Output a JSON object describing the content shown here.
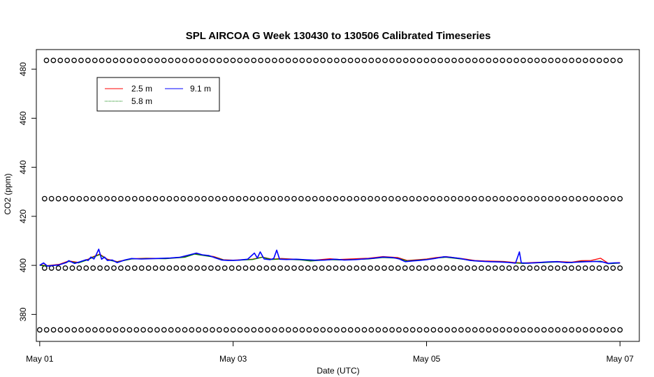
{
  "chart_data": {
    "type": "line",
    "title": "SPL AIRCOA G  Week 130430 to 130506  Calibrated Timeseries",
    "xlabel": "Date (UTC)",
    "ylabel": "CO2 (ppm)",
    "xlim": [
      -0.035,
      6.2
    ],
    "ylim": [
      369,
      488
    ],
    "x_ticks": [
      {
        "value": 0,
        "label": "May 01"
      },
      {
        "value": 2,
        "label": "May 03"
      },
      {
        "value": 4,
        "label": "May 05"
      },
      {
        "value": 6,
        "label": "May 07"
      }
    ],
    "y_ticks": [
      380,
      400,
      420,
      440,
      460,
      480
    ],
    "grid": false,
    "legend_position": "top-left",
    "series": [
      {
        "name": "2.5 m",
        "color": "#ff0000",
        "points": [
          [
            0.0,
            400.2
          ],
          [
            0.08,
            399.9
          ],
          [
            0.2,
            400.4
          ],
          [
            0.3,
            401.8
          ],
          [
            0.4,
            401.2
          ],
          [
            0.5,
            402.5
          ],
          [
            0.55,
            403.5
          ],
          [
            0.62,
            404.6
          ],
          [
            0.7,
            402.5
          ],
          [
            0.8,
            401.5
          ],
          [
            0.95,
            402.7
          ],
          [
            1.1,
            402.9
          ],
          [
            1.3,
            402.8
          ],
          [
            1.5,
            403.5
          ],
          [
            1.6,
            404.8
          ],
          [
            1.7,
            404.2
          ],
          [
            1.8,
            403.6
          ],
          [
            1.9,
            402.3
          ],
          [
            2.0,
            402.1
          ],
          [
            2.2,
            402.5
          ],
          [
            2.3,
            403.4
          ],
          [
            2.4,
            402.5
          ],
          [
            2.5,
            402.8
          ],
          [
            2.6,
            402.6
          ],
          [
            2.7,
            402.4
          ],
          [
            2.8,
            402.0
          ],
          [
            3.0,
            402.7
          ],
          [
            3.1,
            402.4
          ],
          [
            3.2,
            402.6
          ],
          [
            3.4,
            402.9
          ],
          [
            3.55,
            403.6
          ],
          [
            3.7,
            403.2
          ],
          [
            3.8,
            402.0
          ],
          [
            4.0,
            402.6
          ],
          [
            4.1,
            403.2
          ],
          [
            4.2,
            403.6
          ],
          [
            4.4,
            402.6
          ],
          [
            4.5,
            402.0
          ],
          [
            4.6,
            401.8
          ],
          [
            4.8,
            401.6
          ],
          [
            4.9,
            401.2
          ],
          [
            5.0,
            401.0
          ],
          [
            5.2,
            401.3
          ],
          [
            5.35,
            401.6
          ],
          [
            5.5,
            401.3
          ],
          [
            5.6,
            401.9
          ],
          [
            5.7,
            402.0
          ],
          [
            5.8,
            402.9
          ],
          [
            5.88,
            400.8
          ],
          [
            6.0,
            401.1
          ]
        ]
      },
      {
        "name": "5.8 m",
        "color": "#008000",
        "points": [
          [
            0.0,
            400.0
          ],
          [
            0.08,
            399.8
          ],
          [
            0.2,
            400.2
          ],
          [
            0.3,
            401.6
          ],
          [
            0.4,
            401.0
          ],
          [
            0.5,
            402.3
          ],
          [
            0.55,
            403.3
          ],
          [
            0.62,
            404.4
          ],
          [
            0.7,
            402.3
          ],
          [
            0.8,
            401.4
          ],
          [
            0.95,
            402.6
          ],
          [
            1.1,
            402.8
          ],
          [
            1.3,
            402.7
          ],
          [
            1.5,
            403.3
          ],
          [
            1.6,
            404.6
          ],
          [
            1.7,
            404.0
          ],
          [
            1.8,
            403.4
          ],
          [
            1.9,
            402.2
          ],
          [
            2.0,
            402.0
          ],
          [
            2.2,
            402.4
          ],
          [
            2.3,
            403.3
          ],
          [
            2.4,
            402.4
          ],
          [
            2.5,
            402.6
          ],
          [
            2.6,
            402.4
          ],
          [
            2.7,
            402.2
          ],
          [
            2.8,
            401.8
          ],
          [
            3.0,
            402.3
          ],
          [
            3.1,
            402.2
          ],
          [
            3.2,
            402.3
          ],
          [
            3.4,
            402.6
          ],
          [
            3.55,
            403.2
          ],
          [
            3.7,
            402.9
          ],
          [
            3.8,
            401.8
          ],
          [
            4.0,
            402.4
          ],
          [
            4.1,
            403.0
          ],
          [
            4.2,
            403.3
          ],
          [
            4.4,
            402.4
          ],
          [
            4.5,
            401.8
          ],
          [
            4.6,
            401.6
          ],
          [
            4.8,
            401.4
          ],
          [
            4.9,
            401.0
          ],
          [
            5.0,
            400.8
          ],
          [
            5.2,
            401.1
          ],
          [
            5.35,
            401.4
          ],
          [
            5.5,
            401.1
          ],
          [
            5.6,
            401.6
          ],
          [
            5.7,
            401.6
          ],
          [
            5.8,
            401.7
          ],
          [
            5.88,
            400.7
          ],
          [
            6.0,
            400.9
          ]
        ]
      },
      {
        "name": "9.1 m",
        "color": "#0000ff",
        "points": [
          [
            0.0,
            400.0
          ],
          [
            0.04,
            401.0
          ],
          [
            0.08,
            399.7
          ],
          [
            0.12,
            399.9
          ],
          [
            0.2,
            400.2
          ],
          [
            0.28,
            401.2
          ],
          [
            0.3,
            401.9
          ],
          [
            0.36,
            400.8
          ],
          [
            0.42,
            401.5
          ],
          [
            0.48,
            402.3
          ],
          [
            0.5,
            402.0
          ],
          [
            0.53,
            403.4
          ],
          [
            0.56,
            402.6
          ],
          [
            0.58,
            404.0
          ],
          [
            0.61,
            406.6
          ],
          [
            0.64,
            402.5
          ],
          [
            0.67,
            403.4
          ],
          [
            0.7,
            402.0
          ],
          [
            0.75,
            402.2
          ],
          [
            0.8,
            401.1
          ],
          [
            0.88,
            402.2
          ],
          [
            0.95,
            402.8
          ],
          [
            1.05,
            402.6
          ],
          [
            1.2,
            402.8
          ],
          [
            1.35,
            403.0
          ],
          [
            1.45,
            403.3
          ],
          [
            1.55,
            404.3
          ],
          [
            1.62,
            405.0
          ],
          [
            1.68,
            404.3
          ],
          [
            1.75,
            404.0
          ],
          [
            1.82,
            403.0
          ],
          [
            1.88,
            402.2
          ],
          [
            1.95,
            402.0
          ],
          [
            2.05,
            402.1
          ],
          [
            2.15,
            402.5
          ],
          [
            2.22,
            405.0
          ],
          [
            2.25,
            403.0
          ],
          [
            2.28,
            405.5
          ],
          [
            2.32,
            402.6
          ],
          [
            2.38,
            402.3
          ],
          [
            2.42,
            402.8
          ],
          [
            2.45,
            406.2
          ],
          [
            2.48,
            402.5
          ],
          [
            2.55,
            402.4
          ],
          [
            2.65,
            402.5
          ],
          [
            2.75,
            402.3
          ],
          [
            2.85,
            402.1
          ],
          [
            2.95,
            402.2
          ],
          [
            3.05,
            402.5
          ],
          [
            3.15,
            402.2
          ],
          [
            3.25,
            402.3
          ],
          [
            3.35,
            402.6
          ],
          [
            3.45,
            402.9
          ],
          [
            3.55,
            403.4
          ],
          [
            3.65,
            403.2
          ],
          [
            3.72,
            402.6
          ],
          [
            3.78,
            401.5
          ],
          [
            3.85,
            401.8
          ],
          [
            3.92,
            402.0
          ],
          [
            4.0,
            402.3
          ],
          [
            4.1,
            402.9
          ],
          [
            4.18,
            403.5
          ],
          [
            4.25,
            403.3
          ],
          [
            4.35,
            402.8
          ],
          [
            4.45,
            402.0
          ],
          [
            4.55,
            401.7
          ],
          [
            4.65,
            401.5
          ],
          [
            4.75,
            401.4
          ],
          [
            4.85,
            401.2
          ],
          [
            4.92,
            400.9
          ],
          [
            4.96,
            405.5
          ],
          [
            4.98,
            401.0
          ],
          [
            5.05,
            400.9
          ],
          [
            5.15,
            401.1
          ],
          [
            5.25,
            401.4
          ],
          [
            5.35,
            401.5
          ],
          [
            5.45,
            401.1
          ],
          [
            5.55,
            401.3
          ],
          [
            5.65,
            401.5
          ],
          [
            5.75,
            401.6
          ],
          [
            5.82,
            401.4
          ],
          [
            5.88,
            400.8
          ],
          [
            5.94,
            401.0
          ],
          [
            6.0,
            401.0
          ]
        ]
      }
    ],
    "reference_markers": {
      "symbol": "o",
      "color": "#000000",
      "levels": [
        {
          "y": 483.6,
          "x_start": 0.07,
          "x_end": 6.0,
          "count": 84
        },
        {
          "y": 427.2,
          "x_start": 0.05,
          "x_end": 6.0,
          "count": 84
        },
        {
          "y": 398.9,
          "x_start": 0.05,
          "x_end": 6.0,
          "count": 84
        },
        {
          "y": 373.7,
          "x_start": 0.0,
          "x_end": 6.0,
          "count": 85
        }
      ]
    }
  }
}
